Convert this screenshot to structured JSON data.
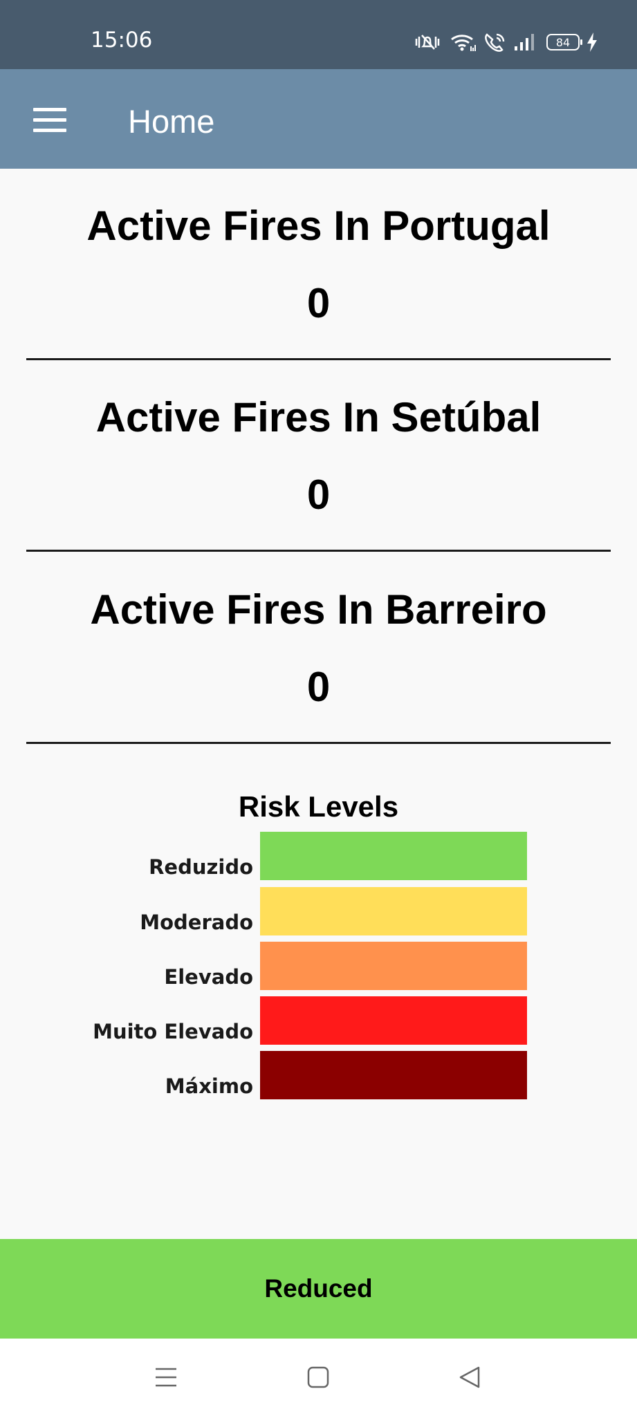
{
  "status_bar": {
    "time": "15:06",
    "battery": "84",
    "icons": [
      "mute-vibrate-icon",
      "wifi-icon",
      "wifi-call-icon",
      "signal-icon",
      "battery-icon",
      "charging-icon"
    ]
  },
  "app_bar": {
    "title": "Home",
    "menu_icon": "hamburger-menu-icon"
  },
  "fire_sections": [
    {
      "title": "Active Fires In Portugal",
      "count": "0"
    },
    {
      "title": "Active Fires In Setúbal",
      "count": "0"
    },
    {
      "title": "Active Fires In Barreiro",
      "count": "0"
    }
  ],
  "risk_legend": {
    "title": "Risk Levels",
    "levels": [
      {
        "label": "Reduzido",
        "color": "#7ed957"
      },
      {
        "label": "Moderado",
        "color": "#ffde59"
      },
      {
        "label": "Elevado",
        "color": "#ff914d"
      },
      {
        "label": "Muito Elevado",
        "color": "#ff1a1a"
      },
      {
        "label": "Máximo",
        "color": "#8b0000"
      }
    ]
  },
  "current_risk": {
    "label": "Reduced",
    "color": "#7ed957"
  },
  "nav_bar": {
    "buttons": [
      "recents-icon",
      "home-icon",
      "back-icon"
    ]
  }
}
